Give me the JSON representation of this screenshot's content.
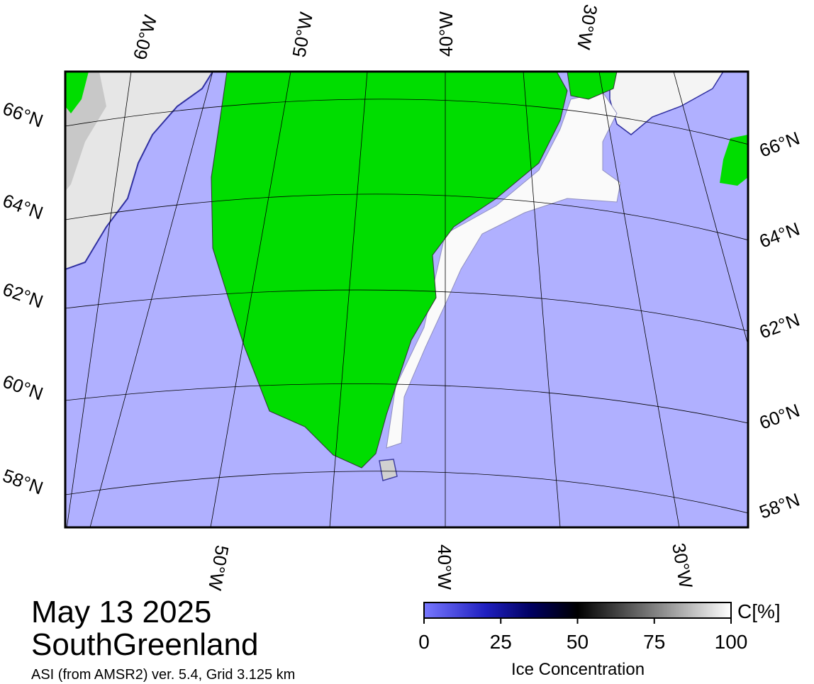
{
  "map": {
    "date": "May 13 2025",
    "region": "SouthGreenland",
    "source": "ASI (from AMSR2) ver. 5.4,  Grid 3.125 km",
    "lat_labels_left": [
      "66°N",
      "64°N",
      "62°N",
      "60°N",
      "58°N"
    ],
    "lat_labels_right": [
      "66°N",
      "64°N",
      "62°N",
      "60°N",
      "58°N"
    ],
    "lon_labels_top": [
      "60°W",
      "50°W",
      "40°W",
      "30°W"
    ],
    "lon_labels_bottom": [
      "50°W",
      "40°W",
      "30°W"
    ]
  },
  "colorbar": {
    "label": "Ice Concentration",
    "unit": "C[%]",
    "lim": [
      0,
      100
    ],
    "ticks": [
      0,
      25,
      50,
      75,
      100
    ]
  }
}
